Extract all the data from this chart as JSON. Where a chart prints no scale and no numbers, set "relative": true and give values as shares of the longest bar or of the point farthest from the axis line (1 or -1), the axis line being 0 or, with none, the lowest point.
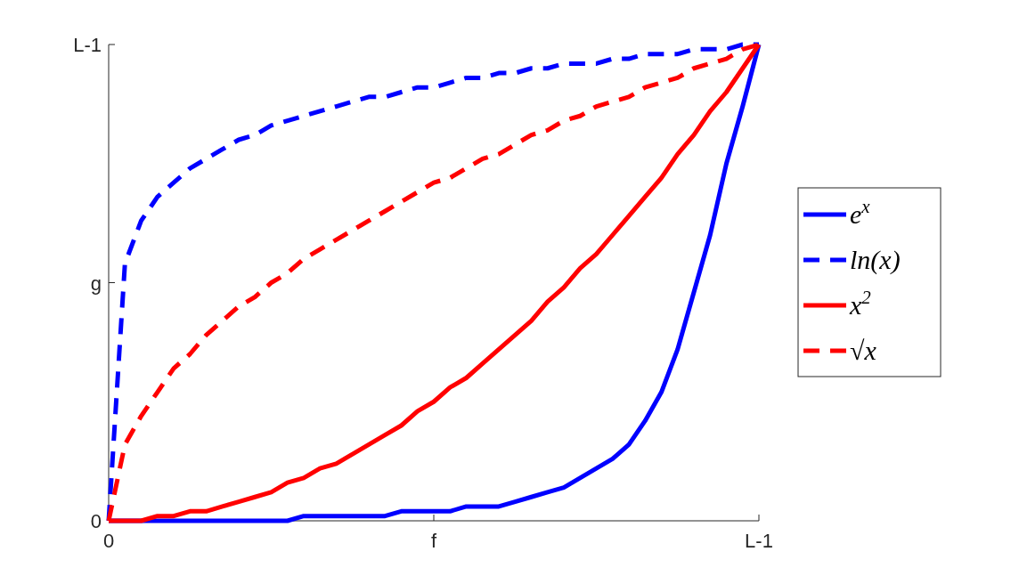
{
  "chart_data": {
    "type": "line",
    "relative": true,
    "categories": [
      "0",
      null,
      null,
      null,
      null,
      null,
      null,
      null,
      null,
      null,
      null,
      null,
      null,
      null,
      null,
      null,
      null,
      null,
      null,
      null,
      "f",
      null,
      null,
      null,
      null,
      null,
      null,
      null,
      null,
      null,
      null,
      null,
      null,
      null,
      null,
      null,
      null,
      null,
      null,
      null,
      "L-1"
    ],
    "annotations": [
      "0",
      "g",
      "L-1"
    ],
    "legend": "right",
    "series": [
      {
        "name": "e$^{x}$",
        "color": "#0000ff",
        "line_style": "solid",
        "values": [
          0,
          0,
          0,
          0,
          0,
          0,
          0,
          0,
          0,
          0,
          0,
          0,
          0.01,
          0.01,
          0.01,
          0.01,
          0.01,
          0.01,
          0.02,
          0.02,
          0.02,
          0.02,
          0.03,
          0.03,
          0.03,
          0.04,
          0.05,
          0.06,
          0.07,
          0.09,
          0.11,
          0.13,
          0.16,
          0.21,
          0.27,
          0.36,
          0.48,
          0.6,
          0.75,
          0.87,
          1
        ]
      },
      {
        "name": "ln(x)",
        "color": "#0000ff",
        "line_style": "dashed",
        "values": [
          0,
          0.54,
          0.63,
          0.68,
          0.71,
          0.74,
          0.76,
          0.78,
          0.8,
          0.81,
          0.83,
          0.84,
          0.85,
          0.86,
          0.87,
          0.88,
          0.89,
          0.89,
          0.9,
          0.91,
          0.91,
          0.92,
          0.93,
          0.93,
          0.94,
          0.94,
          0.95,
          0.95,
          0.96,
          0.96,
          0.96,
          0.97,
          0.97,
          0.98,
          0.98,
          0.98,
          0.99,
          0.99,
          0.99,
          1,
          1
        ]
      },
      {
        "name": "x$^{2}$",
        "color": "#ff0000",
        "line_style": "solid",
        "values": [
          0,
          0,
          0,
          0.01,
          0.01,
          0.02,
          0.02,
          0.03,
          0.04,
          0.05,
          0.06,
          0.08,
          0.09,
          0.11,
          0.12,
          0.14,
          0.16,
          0.18,
          0.2,
          0.23,
          0.25,
          0.28,
          0.3,
          0.33,
          0.36,
          0.39,
          0.42,
          0.46,
          0.49,
          0.53,
          0.56,
          0.6,
          0.64,
          0.68,
          0.72,
          0.77,
          0.81,
          0.86,
          0.9,
          0.95,
          1
        ]
      },
      {
        "name": "√x",
        "color": "#ff0000",
        "line_style": "dashed",
        "values": [
          0,
          0.16,
          0.22,
          0.27,
          0.32,
          0.35,
          0.39,
          0.42,
          0.45,
          0.47,
          0.5,
          0.52,
          0.55,
          0.57,
          0.59,
          0.61,
          0.63,
          0.65,
          0.67,
          0.69,
          0.71,
          0.72,
          0.74,
          0.76,
          0.77,
          0.79,
          0.81,
          0.82,
          0.84,
          0.85,
          0.87,
          0.88,
          0.89,
          0.91,
          0.92,
          0.93,
          0.95,
          0.96,
          0.97,
          0.99,
          1
        ]
      }
    ]
  }
}
